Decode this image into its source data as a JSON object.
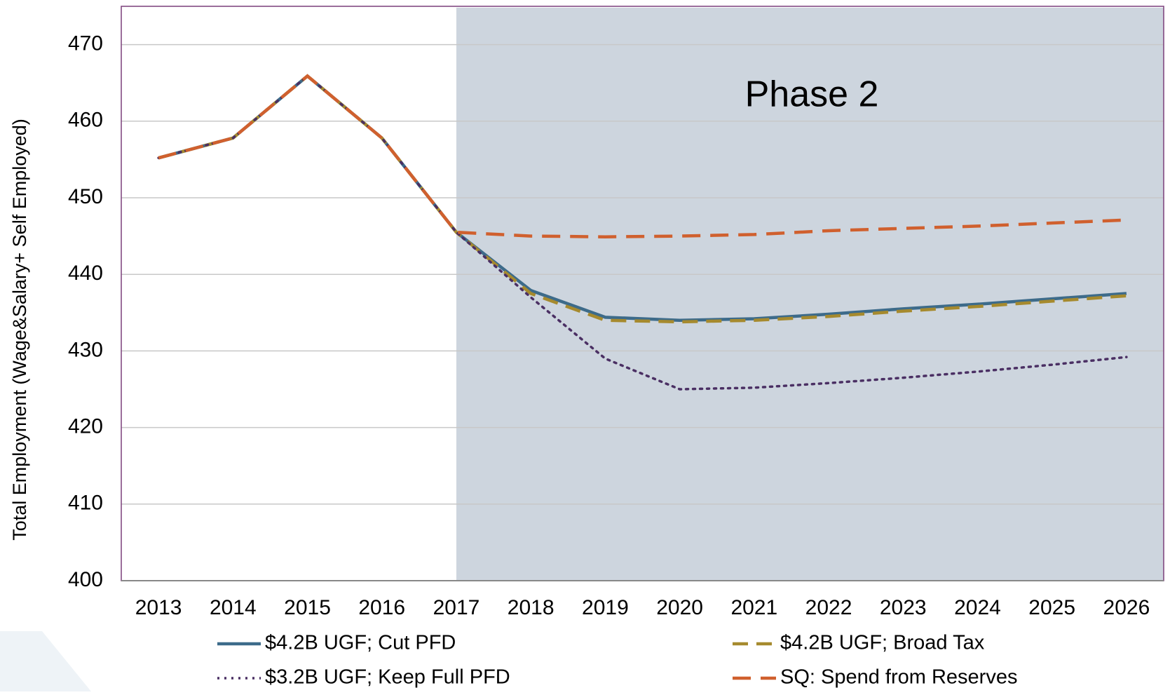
{
  "chart_data": {
    "type": "line",
    "y_label": "Total Employment (Wage&Salary+ Self Employed)",
    "annotation": "Phase 2",
    "shade_start": "2017",
    "shade_color": "#cdd5de",
    "categories": [
      "2013",
      "2014",
      "2015",
      "2016",
      "2017",
      "2018",
      "2019",
      "2020",
      "2021",
      "2022",
      "2023",
      "2024",
      "2025",
      "2026"
    ],
    "series": [
      {
        "name": "$4.2B UGF; Cut PFD",
        "color": "#3d6b8a",
        "dash": "solid",
        "values": [
          455.2,
          457.8,
          465.9,
          457.8,
          445.5,
          437.9,
          434.4,
          434.0,
          434.2,
          434.8,
          435.5,
          436.1,
          436.8,
          437.5
        ]
      },
      {
        "name": "$4.2B UGF; Broad Tax",
        "color": "#a68a2e",
        "dash": "dashed",
        "values": [
          455.2,
          457.8,
          465.9,
          457.8,
          445.5,
          437.5,
          434.0,
          433.8,
          434.0,
          434.5,
          435.2,
          435.8,
          436.5,
          437.2
        ]
      },
      {
        "name": "$3.2B UGF; Keep Full PFD",
        "color": "#4a2f63",
        "dash": "dotted",
        "values": [
          455.2,
          457.8,
          465.9,
          457.8,
          445.5,
          437.0,
          429.0,
          425.0,
          425.2,
          425.8,
          426.5,
          427.3,
          428.2,
          429.2
        ]
      },
      {
        "name": "SQ: Spend from Reserves",
        "color": "#d0602e",
        "dash": "longdash",
        "values": [
          455.2,
          457.8,
          465.9,
          457.8,
          445.5,
          445.0,
          444.9,
          445.0,
          445.2,
          445.7,
          446.0,
          446.3,
          446.7,
          447.1
        ]
      }
    ],
    "ylim": [
      400,
      475
    ],
    "yticks": [
      400,
      410,
      420,
      430,
      440,
      450,
      460,
      470
    ],
    "grid": true
  }
}
